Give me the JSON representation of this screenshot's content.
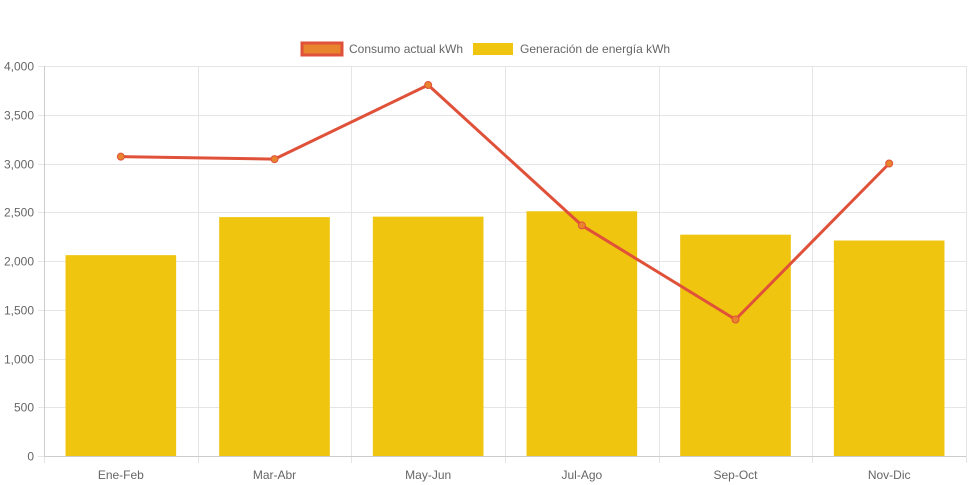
{
  "chart_data": {
    "type": "bar",
    "categories": [
      "Ene-Feb",
      "Mar-Abr",
      "May-Jun",
      "Jul-Ago",
      "Sep-Oct",
      "Nov-Dic"
    ],
    "series": [
      {
        "name": "Consumo actual kWh",
        "type": "line",
        "values": [
          3070,
          3045,
          3805,
          2365,
          1400,
          3000
        ]
      },
      {
        "name": "Generación de energía kWh",
        "type": "bar",
        "values": [
          2060,
          2450,
          2455,
          2510,
          2270,
          2210
        ]
      }
    ],
    "ylim": [
      0,
      4000
    ],
    "yticks": [
      0,
      500,
      1000,
      1500,
      2000,
      2500,
      3000,
      3500,
      4000
    ],
    "ytick_labels": [
      "0",
      "500",
      "1,000",
      "1,500",
      "2,000",
      "2,500",
      "3,000",
      "3,500",
      "4,000"
    ],
    "xlabel": "",
    "ylabel": "",
    "grid": true,
    "legend_position": "top-center"
  },
  "colors": {
    "line": "#e0513a",
    "line_point": "#e8832e",
    "legend_line_fill": "#e8832e",
    "bar": "#f0c50f",
    "grid": "#e5e5e5",
    "text": "#666666"
  }
}
